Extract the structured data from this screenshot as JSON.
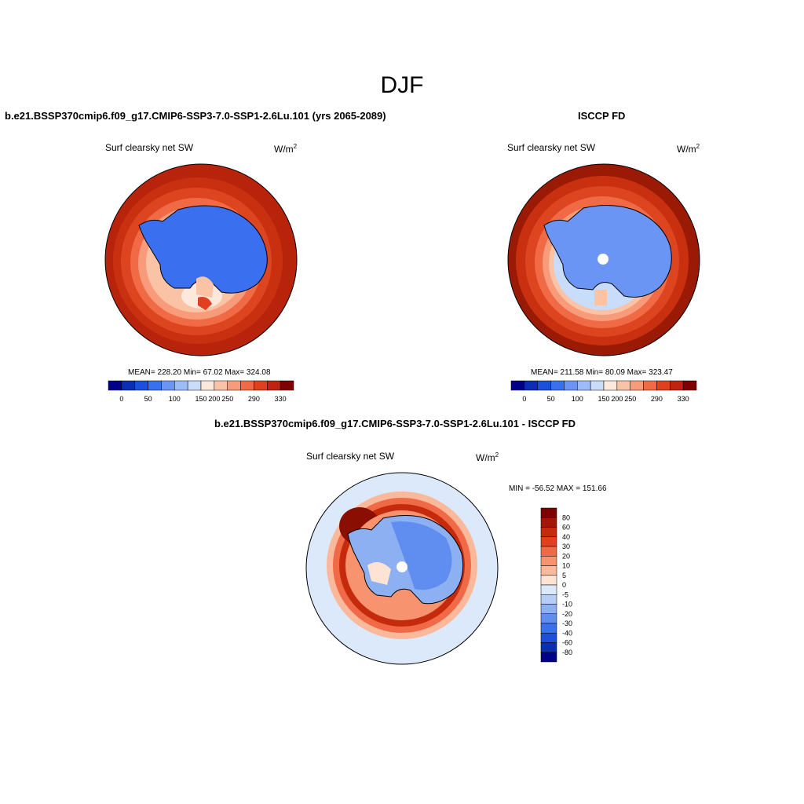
{
  "main_title": "DJF",
  "top_left": {
    "title": "b.e21.BSSP370cmip6.f09_g17.CMIP6-SSP3-7.0-SSP1-2.6Lu.101 (yrs 2065-2089)",
    "variable": "Surf clearsky net SW",
    "units_base": "W/m",
    "units_exp": "2",
    "stats": "MEAN= 228.20  Min=  67.02  Max= 324.08"
  },
  "top_right": {
    "title": "ISCCP FD",
    "variable": "Surf clearsky net SW",
    "units_base": "W/m",
    "units_exp": "2",
    "stats": "MEAN= 211.58  Min=  80.09  Max= 323.47"
  },
  "bottom": {
    "title": "b.e21.BSSP370cmip6.f09_g17.CMIP6-SSP3-7.0-SSP1-2.6Lu.101 - ISCCP FD",
    "variable": "Surf clearsky net SW",
    "units_base": "W/m",
    "units_exp": "2",
    "stats": "MIN = -56.52 MAX = 151.66"
  },
  "colorbar_top": {
    "labels": [
      "0",
      "50",
      "100",
      "150",
      "200",
      "250",
      "290",
      "330"
    ],
    "colors": [
      "#00008b",
      "#0a2fb5",
      "#1c4fdb",
      "#3a6ff0",
      "#6a95f5",
      "#9bbcf7",
      "#c9dcf9",
      "#fde9dc",
      "#fbc3a6",
      "#f79b7a",
      "#f06a48",
      "#e0401f",
      "#c02410",
      "#7f0000"
    ]
  },
  "colorbar_diff": {
    "labels": [
      "80",
      "60",
      "40",
      "30",
      "20",
      "10",
      "5",
      "0",
      "-5",
      "-10",
      "-20",
      "-30",
      "-40",
      "-60",
      "-80"
    ],
    "colors": [
      "#7f0000",
      "#a51505",
      "#c62a0c",
      "#e0401f",
      "#f06a48",
      "#f7936e",
      "#fbb99b",
      "#fde3d3",
      "#dce9fa",
      "#b5cdf7",
      "#8db0f3",
      "#5f8ef0",
      "#3a6ff0",
      "#1c4fdb",
      "#0a2fb5",
      "#00008b"
    ]
  }
}
